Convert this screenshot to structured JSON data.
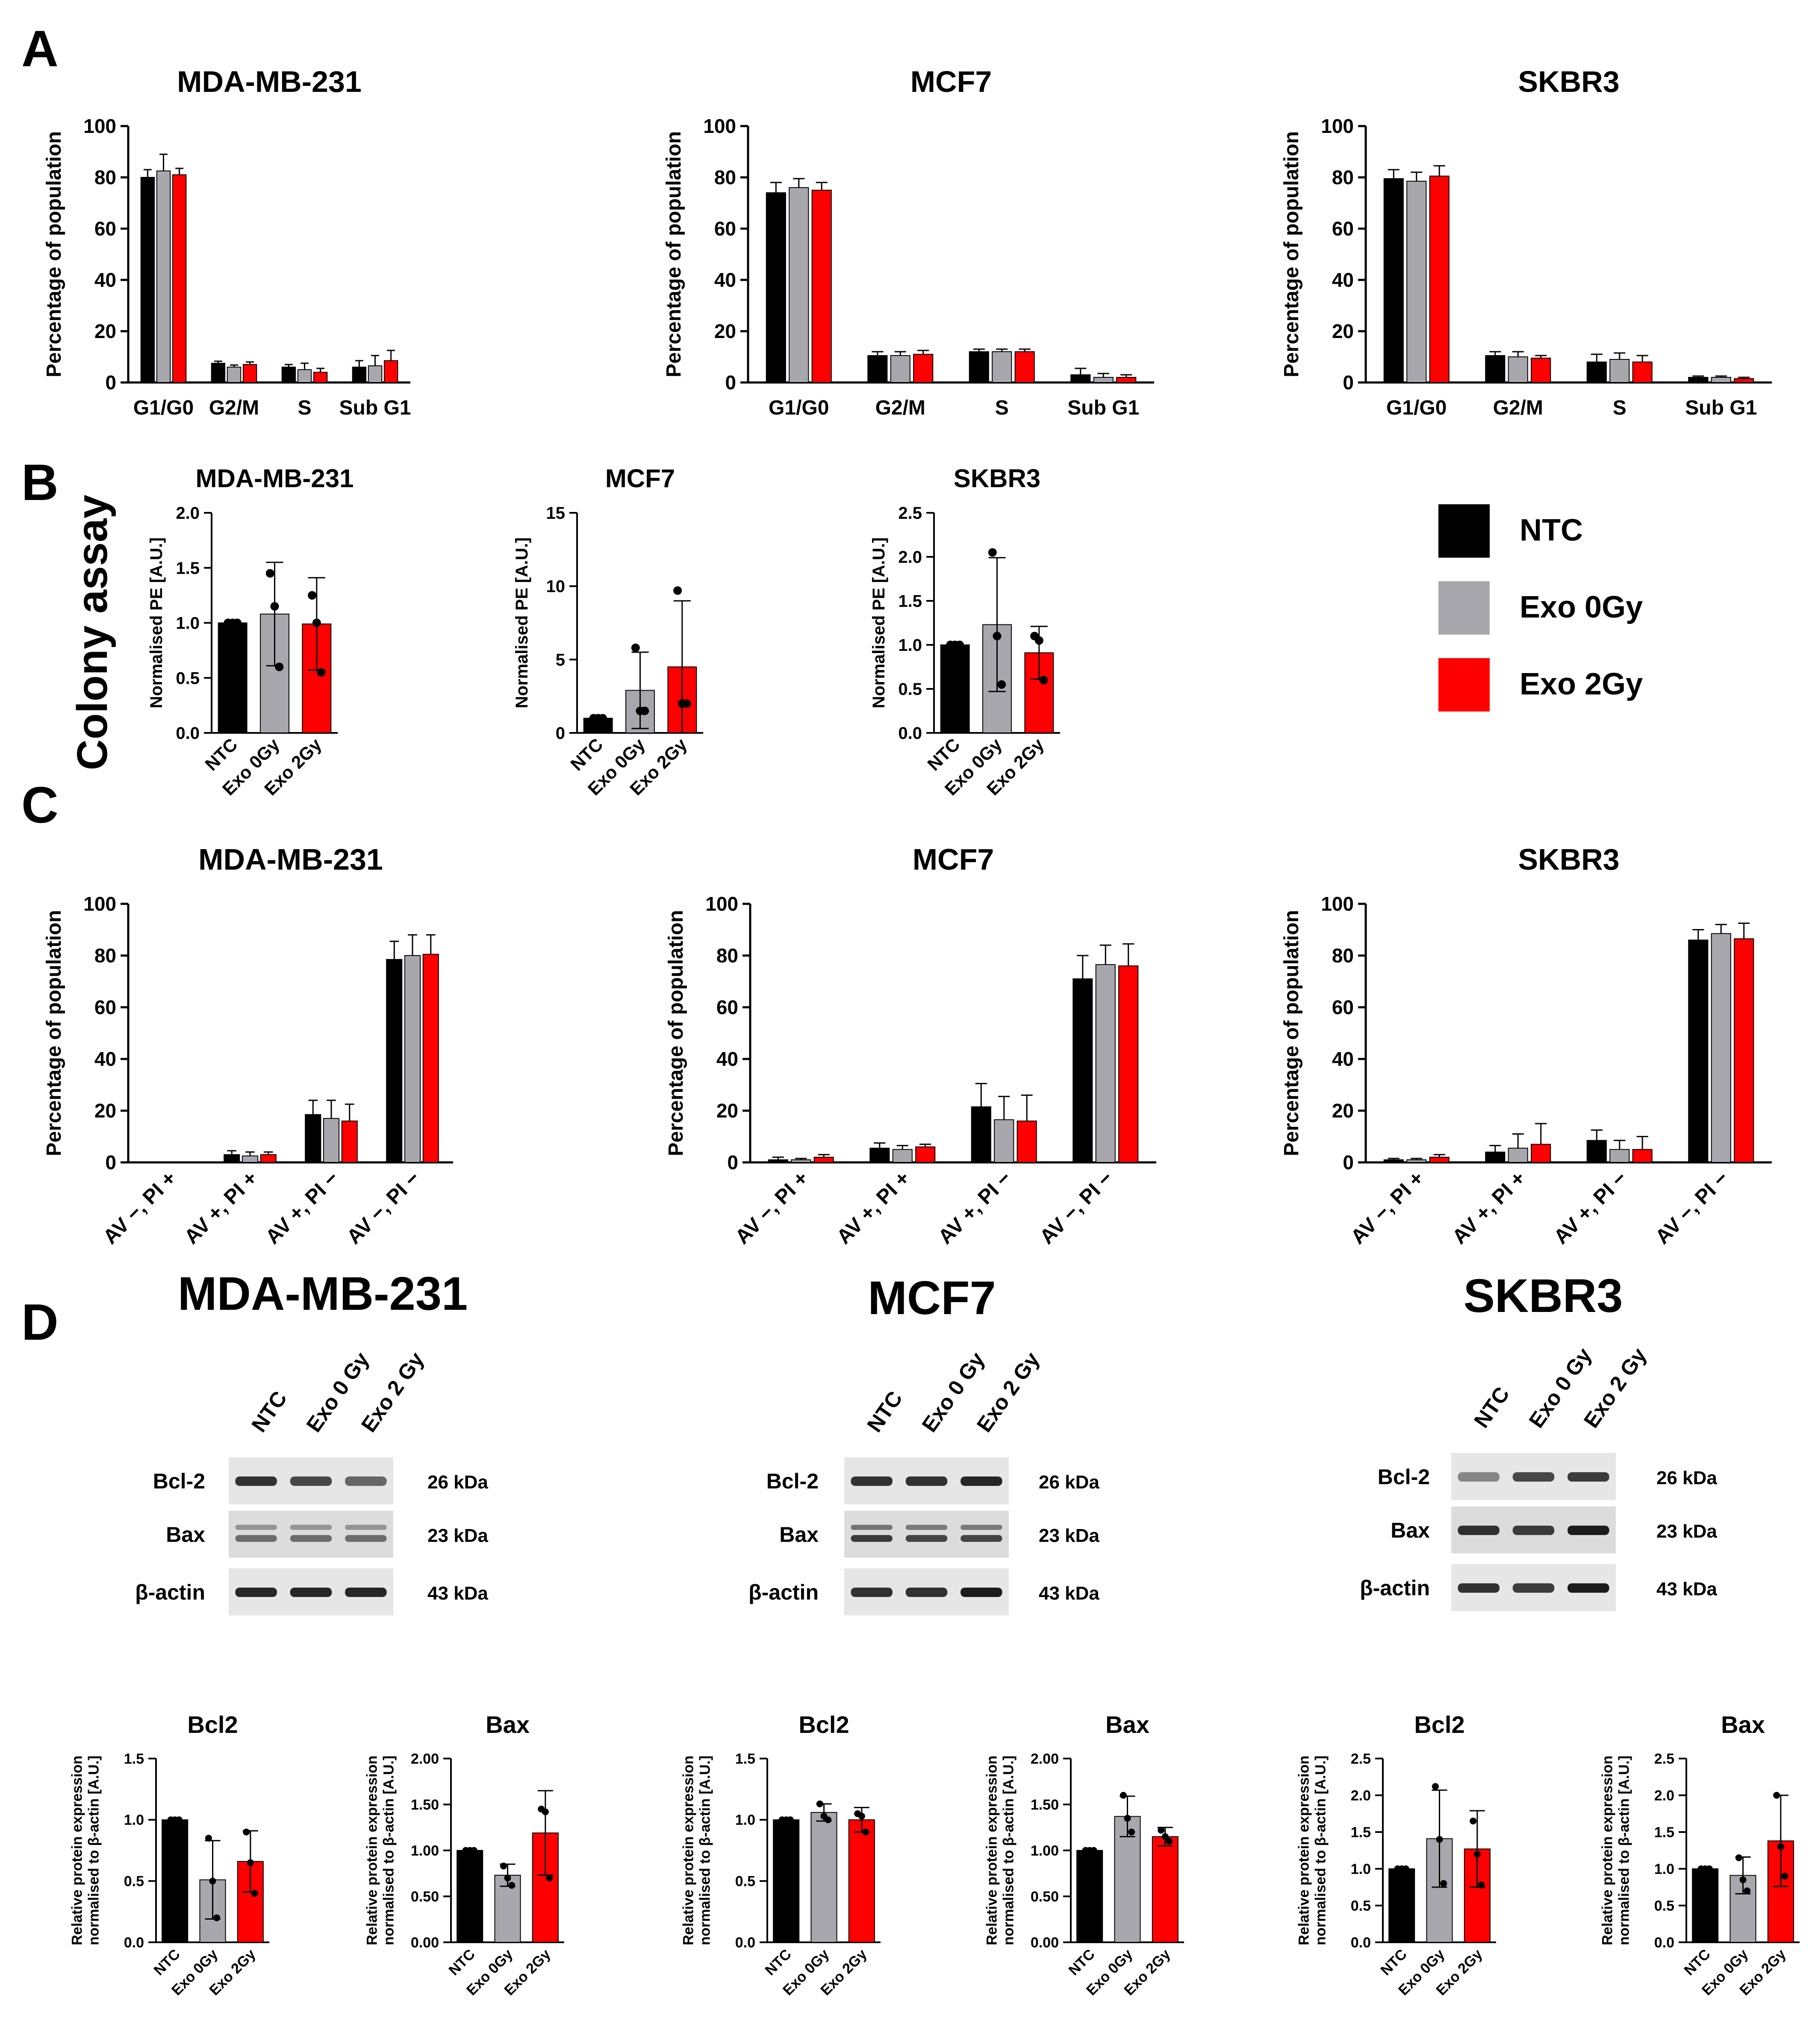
{
  "colors": {
    "NTC": "#000000",
    "Exo0": "#a8a7ae",
    "Exo2": "#ff0000"
  },
  "legend": {
    "items": [
      {
        "label": "NTC",
        "color": "#000000"
      },
      {
        "label": "Exo 0Gy",
        "color": "#a8a7ae"
      },
      {
        "label": "Exo 2Gy",
        "color": "#ff0000"
      }
    ]
  },
  "panels": {
    "A": {
      "letter": "A"
    },
    "B": {
      "letter": "B",
      "side_label": "Colony assay"
    },
    "C": {
      "letter": "C"
    },
    "D": {
      "letter": "D"
    }
  },
  "chart_data": [
    {
      "id": "A1",
      "panel": "A",
      "type": "bar",
      "title": "MDA-MB-231",
      "ylabel": "Percentage of population",
      "ylim": [
        0,
        100
      ],
      "yticks": [
        0,
        20,
        40,
        60,
        80,
        100
      ],
      "categories": [
        "G1/G0",
        "G2/M",
        "S",
        "Sub G1"
      ],
      "series": [
        {
          "name": "NTC",
          "values": [
            80,
            7.5,
            6,
            6
          ],
          "errors": [
            3,
            0.8,
            1,
            2.5
          ]
        },
        {
          "name": "Exo 0Gy",
          "values": [
            82.5,
            6,
            5,
            6.5
          ],
          "errors": [
            6.5,
            0.8,
            2.5,
            4
          ]
        },
        {
          "name": "Exo 2Gy",
          "values": [
            81,
            7,
            4,
            8.5
          ],
          "errors": [
            2.5,
            1,
            1.5,
            4
          ]
        }
      ]
    },
    {
      "id": "A2",
      "panel": "A",
      "type": "bar",
      "title": "MCF7",
      "ylabel": "Percentage of population",
      "ylim": [
        0,
        100
      ],
      "yticks": [
        0,
        20,
        40,
        60,
        80,
        100
      ],
      "categories": [
        "G1/G0",
        "G2/M",
        "S",
        "Sub G1"
      ],
      "series": [
        {
          "name": "NTC",
          "values": [
            74,
            10.5,
            12,
            3
          ],
          "errors": [
            4,
            1.5,
            1,
            2.5
          ]
        },
        {
          "name": "Exo 0Gy",
          "values": [
            76,
            10.5,
            12,
            2
          ],
          "errors": [
            3.5,
            1.5,
            1,
            1.5
          ]
        },
        {
          "name": "Exo 2Gy",
          "values": [
            75,
            11,
            12,
            2
          ],
          "errors": [
            3,
            1.5,
            1,
            1
          ]
        }
      ]
    },
    {
      "id": "A3",
      "panel": "A",
      "type": "bar",
      "title": "SKBR3",
      "ylabel": "Percentage of population",
      "ylim": [
        0,
        100
      ],
      "yticks": [
        0,
        20,
        40,
        60,
        80,
        100
      ],
      "categories": [
        "G1/G0",
        "G2/M",
        "S",
        "Sub G1"
      ],
      "series": [
        {
          "name": "NTC",
          "values": [
            79.5,
            10.5,
            8,
            2
          ],
          "errors": [
            3.5,
            1.5,
            3,
            0.5
          ]
        },
        {
          "name": "Exo 0Gy",
          "values": [
            78.5,
            10,
            9,
            2
          ],
          "errors": [
            3.5,
            2,
            2.5,
            0.5
          ]
        },
        {
          "name": "Exo 2Gy",
          "values": [
            80.5,
            9.5,
            8,
            1.5
          ],
          "errors": [
            4,
            1,
            2.5,
            0.5
          ]
        }
      ]
    },
    {
      "id": "B1",
      "panel": "B",
      "type": "bar",
      "title": "MDA-MB-231",
      "ylabel": "Normalised PE [A.U.]",
      "ylim": [
        0,
        2.0
      ],
      "yticks": [
        0.0,
        0.5,
        1.0,
        1.5,
        2.0
      ],
      "tick_format": "fixed1",
      "categories": [
        "NTC",
        "Exo 0Gy",
        "Exo 2Gy"
      ],
      "values": [
        1.0,
        1.08,
        0.99
      ],
      "errors": [
        0,
        0.47,
        0.42
      ],
      "points": [
        [
          1.0,
          1.0,
          1.0
        ],
        [
          1.45,
          1.15,
          0.6
        ],
        [
          1.25,
          1.0,
          0.55
        ]
      ]
    },
    {
      "id": "B2",
      "panel": "B",
      "type": "bar",
      "title": "MCF7",
      "ylabel": "Normalised PE [A.U.]",
      "ylim": [
        0,
        15
      ],
      "yticks": [
        0,
        5,
        10,
        15
      ],
      "categories": [
        "NTC",
        "Exo 0Gy",
        "Exo 2Gy"
      ],
      "values": [
        1.0,
        2.9,
        4.5
      ],
      "errors": [
        0,
        2.6,
        4.5
      ],
      "points": [
        [
          1.0,
          1.0,
          1.0
        ],
        [
          5.8,
          1.5,
          1.5
        ],
        [
          9.7,
          2.0,
          2.0
        ]
      ]
    },
    {
      "id": "B3",
      "panel": "B",
      "type": "bar",
      "title": "SKBR3",
      "ylabel": "Normalised PE [A.U.]",
      "ylim": [
        0,
        2.5
      ],
      "yticks": [
        0.0,
        0.5,
        1.0,
        1.5,
        2.0,
        2.5
      ],
      "tick_format": "fixed1",
      "categories": [
        "NTC",
        "Exo 0Gy",
        "Exo 2Gy"
      ],
      "values": [
        1.0,
        1.23,
        0.91
      ],
      "errors": [
        0,
        0.76,
        0.3
      ],
      "points": [
        [
          1.0,
          1.0,
          1.0
        ],
        [
          2.05,
          1.1,
          0.55
        ],
        [
          1.1,
          1.05,
          0.6
        ]
      ]
    },
    {
      "id": "C1",
      "panel": "C",
      "type": "bar",
      "title": "MDA-MB-231",
      "ylabel": "Percentage of population",
      "ylim": [
        0,
        100
      ],
      "yticks": [
        0,
        20,
        40,
        60,
        80,
        100
      ],
      "categories": [
        "AV −, PI +",
        "AV +, PI +",
        "AV +, PI −",
        "AV −, PI −"
      ],
      "series": [
        {
          "name": "NTC",
          "values": [
            0,
            3,
            18.5,
            78.5
          ],
          "errors": [
            0,
            1.5,
            5.5,
            7
          ]
        },
        {
          "name": "Exo 0Gy",
          "values": [
            0,
            2.5,
            17,
            80
          ],
          "errors": [
            0,
            1.5,
            7,
            8
          ]
        },
        {
          "name": "Exo 2Gy",
          "values": [
            0,
            3,
            16,
            80.5
          ],
          "errors": [
            0,
            1,
            6.5,
            7.5
          ]
        }
      ]
    },
    {
      "id": "C2",
      "panel": "C",
      "type": "bar",
      "title": "MCF7",
      "ylabel": "Percentage of population",
      "ylim": [
        0,
        100
      ],
      "yticks": [
        0,
        20,
        40,
        60,
        80,
        100
      ],
      "categories": [
        "AV −, PI +",
        "AV +, PI +",
        "AV +, PI −",
        "AV −, PI −"
      ],
      "series": [
        {
          "name": "NTC",
          "values": [
            1,
            5.5,
            21.5,
            71
          ],
          "errors": [
            1,
            2,
            9,
            9
          ]
        },
        {
          "name": "Exo 0Gy",
          "values": [
            1,
            5,
            16.5,
            76.5
          ],
          "errors": [
            0.5,
            1.5,
            9,
            7.5
          ]
        },
        {
          "name": "Exo 2Gy",
          "values": [
            2,
            6,
            16,
            76
          ],
          "errors": [
            1,
            1,
            10,
            8.5
          ]
        }
      ]
    },
    {
      "id": "C3",
      "panel": "C",
      "type": "bar",
      "title": "SKBR3",
      "ylabel": "Percentage of population",
      "ylim": [
        0,
        100
      ],
      "yticks": [
        0,
        20,
        40,
        60,
        80,
        100
      ],
      "categories": [
        "AV −, PI +",
        "AV +, PI +",
        "AV +, PI −",
        "AV −, PI −"
      ],
      "series": [
        {
          "name": "NTC",
          "values": [
            1,
            4,
            8.5,
            86
          ],
          "errors": [
            0.5,
            2.5,
            4,
            4
          ]
        },
        {
          "name": "Exo 0Gy",
          "values": [
            1,
            5.5,
            5,
            88.5
          ],
          "errors": [
            0.5,
            5.5,
            3.5,
            3.5
          ]
        },
        {
          "name": "Exo 2Gy",
          "values": [
            2,
            7,
            5,
            86.5
          ],
          "errors": [
            1,
            8,
            5,
            6
          ]
        }
      ]
    },
    {
      "id": "D1",
      "panel": "D",
      "type": "bar",
      "title": "Bcl2",
      "ylabel": "Relative protein expression\nnormalised to β-actin [A.U.]",
      "ylim": [
        0,
        1.5
      ],
      "yticks": [
        0.0,
        0.5,
        1.0,
        1.5
      ],
      "tick_format": "fixed1",
      "categories": [
        "NTC",
        "Exo 0Gy",
        "Exo 2Gy"
      ],
      "values": [
        1.0,
        0.51,
        0.66
      ],
      "errors": [
        0,
        0.32,
        0.25
      ],
      "points": [
        [
          1.0,
          1.0,
          1.0
        ],
        [
          0.85,
          0.5,
          0.2
        ],
        [
          0.9,
          0.65,
          0.4
        ]
      ]
    },
    {
      "id": "D2",
      "panel": "D",
      "type": "bar",
      "title": "Bax",
      "ylabel": "Relative protein expression\nnormalised to β-actin [A.U.]",
      "ylim": [
        0,
        2.0
      ],
      "yticks": [
        0.0,
        0.5,
        1.0,
        1.5,
        2.0
      ],
      "tick_format": "fixed2",
      "categories": [
        "NTC",
        "Exo 0Gy",
        "Exo 2Gy"
      ],
      "values": [
        1.0,
        0.73,
        1.19
      ],
      "errors": [
        0,
        0.12,
        0.46
      ],
      "points": [
        [
          1.0,
          1.0,
          1.0
        ],
        [
          0.83,
          0.7,
          0.62
        ],
        [
          1.45,
          1.42,
          0.7
        ]
      ]
    },
    {
      "id": "D3",
      "panel": "D",
      "type": "bar",
      "title": "Bcl2",
      "ylabel": "Relative protein expression\nnormalised to β-actin [A.U.]",
      "ylim": [
        0,
        1.5
      ],
      "yticks": [
        0.0,
        0.5,
        1.0,
        1.5
      ],
      "tick_format": "fixed1",
      "categories": [
        "NTC",
        "Exo 0Gy",
        "Exo 2Gy"
      ],
      "values": [
        1.0,
        1.06,
        1.0
      ],
      "errors": [
        0,
        0.07,
        0.1
      ],
      "points": [
        [
          1.0,
          1.0,
          1.0
        ],
        [
          1.13,
          1.03,
          1.0
        ],
        [
          1.05,
          1.03,
          0.9
        ]
      ]
    },
    {
      "id": "D4",
      "panel": "D",
      "type": "bar",
      "title": "Bax",
      "ylabel": "Relative protein expression\nnormalised to β-actin [A.U.]",
      "ylim": [
        0,
        2.0
      ],
      "yticks": [
        0.0,
        0.5,
        1.0,
        1.5,
        2.0
      ],
      "tick_format": "fixed2",
      "categories": [
        "NTC",
        "Exo 0Gy",
        "Exo 2Gy"
      ],
      "values": [
        1.0,
        1.37,
        1.15
      ],
      "errors": [
        0,
        0.22,
        0.1
      ],
      "points": [
        [
          1.0,
          1.0,
          1.0
        ],
        [
          1.6,
          1.35,
          1.2
        ],
        [
          1.22,
          1.15,
          1.1
        ]
      ]
    },
    {
      "id": "D5",
      "panel": "D",
      "type": "bar",
      "title": "Bcl2",
      "ylabel": "Relative protein expression\nnormalised to β-actin [A.U.]",
      "ylim": [
        0,
        2.5
      ],
      "yticks": [
        0.0,
        0.5,
        1.0,
        1.5,
        2.0,
        2.5
      ],
      "tick_format": "fixed1",
      "categories": [
        "NTC",
        "Exo 0Gy",
        "Exo 2Gy"
      ],
      "values": [
        1.0,
        1.41,
        1.27
      ],
      "errors": [
        0,
        0.66,
        0.52
      ],
      "points": [
        [
          1.0,
          1.0,
          1.0
        ],
        [
          2.12,
          1.4,
          0.8
        ],
        [
          1.65,
          1.2,
          0.78
        ]
      ]
    },
    {
      "id": "D6",
      "panel": "D",
      "type": "bar",
      "title": "Bax",
      "ylabel": "Relative protein expression\nnormalised to β-actin [A.U.]",
      "ylim": [
        0,
        2.5
      ],
      "yticks": [
        0.0,
        0.5,
        1.0,
        1.5,
        2.0,
        2.5
      ],
      "tick_format": "fixed1",
      "categories": [
        "NTC",
        "Exo 0Gy",
        "Exo 2Gy"
      ],
      "values": [
        1.0,
        0.91,
        1.38
      ],
      "errors": [
        0,
        0.25,
        0.62
      ],
      "points": [
        [
          1.0,
          1.0,
          1.0
        ],
        [
          1.15,
          0.85,
          0.7
        ],
        [
          2.0,
          1.3,
          0.9
        ]
      ]
    }
  ],
  "blots": {
    "titles": [
      "MDA-MB-231",
      "MCF7",
      "SKBR3"
    ],
    "lanes": [
      "NTC",
      "Exo 0 Gy",
      "Exo 2 Gy"
    ],
    "rows": [
      {
        "label": "Bcl-2",
        "kda": "26 kDa"
      },
      {
        "label": "Bax",
        "kda": "23 kDa"
      },
      {
        "label": "β-actin",
        "kda": "43 kDa"
      }
    ]
  }
}
